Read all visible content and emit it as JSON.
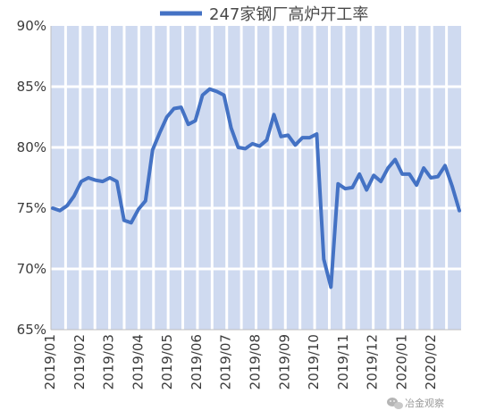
{
  "chart_data": {
    "type": "line",
    "series": [
      {
        "name": "247家钢厂高炉开工率",
        "color": "#4472c4",
        "values": [
          75.0,
          74.8,
          75.2,
          76.0,
          77.2,
          77.5,
          77.3,
          77.2,
          77.5,
          77.2,
          74.0,
          73.8,
          74.9,
          75.6,
          79.8,
          81.2,
          82.5,
          83.2,
          83.3,
          81.9,
          82.2,
          84.3,
          84.8,
          84.6,
          84.3,
          81.6,
          80.0,
          79.9,
          80.3,
          80.1,
          80.6,
          82.7,
          80.9,
          81.0,
          80.2,
          80.8,
          80.8,
          81.1,
          70.8,
          68.5,
          77.0,
          76.6,
          76.7,
          77.8,
          76.5,
          77.7,
          77.2,
          78.3,
          79.0,
          77.8,
          77.8,
          76.9,
          78.3,
          77.5,
          77.6,
          78.5,
          76.8,
          74.8
        ]
      }
    ],
    "x_tick_labels": [
      "2019/01",
      "2019/02",
      "2019/03",
      "2019/04",
      "2019/05",
      "2019/06",
      "2019/07",
      "2019/08",
      "2019/09",
      "2019/10",
      "2019/11",
      "2019/12",
      "2020/01",
      "2020/02"
    ],
    "y_tick_labels": [
      "90%",
      "85%",
      "80%",
      "75%",
      "70%",
      "65%"
    ],
    "ylim": [
      65,
      90
    ],
    "y_ticks": [
      90,
      85,
      80,
      75,
      70,
      65
    ],
    "grid": true,
    "legend_position": "top-center",
    "plot_background_color": "#cfdaf0",
    "gridline_color": "#ffffff",
    "axis_color": "#bfbfbf",
    "title": "",
    "xlabel": "",
    "ylabel": ""
  },
  "watermark": {
    "text": "冶金观察",
    "icon": "wechat-icon"
  }
}
